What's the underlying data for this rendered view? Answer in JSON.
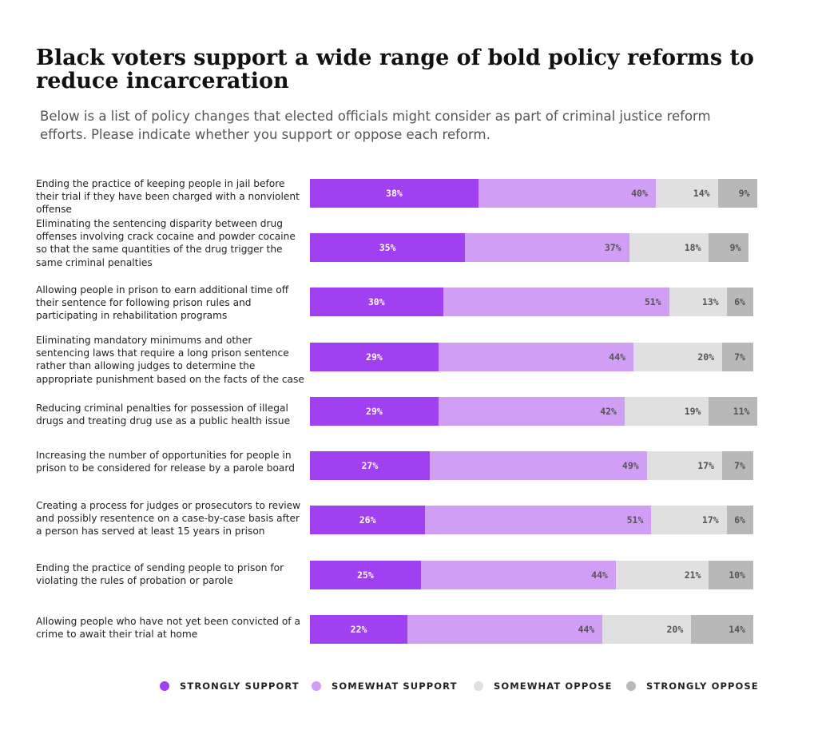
{
  "title": "Black voters support a wide range of bold policy reforms to reduce incarceration",
  "subtitle": "Below is a list of policy changes that elected officials might consider as part of criminal justice reform efforts. Please indicate whether you support or oppose each reform.",
  "colors": {
    "strongly_support": "#a040f0",
    "somewhat_support": "#d09ef5",
    "somewhat_oppose": "#e0e0e0",
    "strongly_oppose": "#b8b8b8",
    "label_dark": "#ffffff",
    "label_light": "#555555"
  },
  "chart_data": {
    "type": "bar",
    "orientation": "horizontal",
    "stacked": true,
    "title": "Black voters support a wide range of bold policy reforms to reduce incarceration",
    "subtitle": "Below is a list of policy changes that elected officials might consider as part of criminal justice reform efforts. Please indicate whether you support or oppose each reform.",
    "categories": [
      "Ending the practice of keeping people in jail before their trial if they have been charged with a nonviolent offense",
      "Eliminating the sentencing disparity between drug offenses involving crack cocaine and powder cocaine so that the same quantities of the drug trigger the same criminal penalties",
      "Allowing people in prison to earn additional time off their sentence for following prison rules and participating in rehabilitation programs",
      "Eliminating mandatory minimums and other sentencing laws that require a long prison sentence rather than allowing judges to determine the appropriate punishment based on the facts of the case",
      "Reducing criminal penalties for possession of illegal drugs and treating drug use as a public health issue",
      "Increasing the number of opportunities for people in prison to be considered for release by a parole board",
      "Creating a process for judges or prosecutors to review and possibly resentence on a case-by-case basis after a person has served at least 15 years in prison",
      "Ending the practice of sending people to prison for violating the rules of probation or parole",
      "Allowing people who have not yet been convicted of a crime to await their trial at home"
    ],
    "series": [
      {
        "name": "STRONGLY SUPPORT",
        "color": "#a040f0",
        "values": [
          38,
          35,
          30,
          29,
          29,
          27,
          26,
          25,
          22
        ]
      },
      {
        "name": "SOMEWHAT SUPPORT",
        "color": "#d09ef5",
        "values": [
          40,
          37,
          51,
          44,
          42,
          49,
          51,
          44,
          44
        ]
      },
      {
        "name": "SOMEWHAT OPPOSE",
        "color": "#e0e0e0",
        "values": [
          14,
          18,
          13,
          20,
          19,
          17,
          17,
          21,
          20
        ]
      },
      {
        "name": "STRONGLY OPPOSE",
        "color": "#b8b8b8",
        "values": [
          9,
          9,
          6,
          7,
          11,
          7,
          6,
          10,
          14
        ]
      }
    ],
    "value_suffix": "%",
    "legend_position": "bottom",
    "grid": false
  },
  "rows": [
    {
      "label": "Ending the practice of keeping people in jail before their trial if they have been charged with a nonviolent offense",
      "values": [
        "38%",
        "40%",
        "14%",
        "9%"
      ]
    },
    {
      "label": "Eliminating the sentencing disparity between drug offenses involving crack cocaine and powder cocaine so that the same quantities of the drug trigger the same criminal penalties",
      "values": [
        "35%",
        "37%",
        "18%",
        "9%"
      ]
    },
    {
      "label": "Allowing people in prison to earn additional time off their sentence for following prison rules and participating in rehabilitation programs",
      "values": [
        "30%",
        "51%",
        "13%",
        "6%"
      ]
    },
    {
      "label": "Eliminating mandatory minimums and other sentencing laws that require a long prison sentence rather than allowing judges to determine the appropriate punishment based on the facts of the case",
      "values": [
        "29%",
        "44%",
        "20%",
        "7%"
      ]
    },
    {
      "label": "Reducing criminal penalties for possession of illegal drugs and treating drug use as a public health issue",
      "values": [
        "29%",
        "42%",
        "19%",
        "11%"
      ]
    },
    {
      "label": "Increasing the number of opportunities for people in prison to be considered for release by a parole board",
      "values": [
        "27%",
        "49%",
        "17%",
        "7%"
      ]
    },
    {
      "label": "Creating a process for judges or prosecutors to review and possibly resentence on a case-by-case basis after a person has served at least 15 years in prison",
      "values": [
        "26%",
        "51%",
        "17%",
        "6%"
      ]
    },
    {
      "label": "Ending the practice of sending people to prison for violating the rules of probation or parole",
      "values": [
        "25%",
        "44%",
        "21%",
        "10%"
      ]
    },
    {
      "label": "Allowing people who have not yet been convicted of a crime to await their trial at home",
      "values": [
        "22%",
        "44%",
        "20%",
        "14%"
      ]
    }
  ],
  "legend": [
    {
      "label": "STRONGLY SUPPORT",
      "color": "#a040f0"
    },
    {
      "label": "SOMEWHAT SUPPORT",
      "color": "#d09ef5"
    },
    {
      "label": "SOMEWHAT OPPOSE",
      "color": "#e0e0e0"
    },
    {
      "label": "STRONGLY OPPOSE",
      "color": "#b8b8b8"
    }
  ]
}
